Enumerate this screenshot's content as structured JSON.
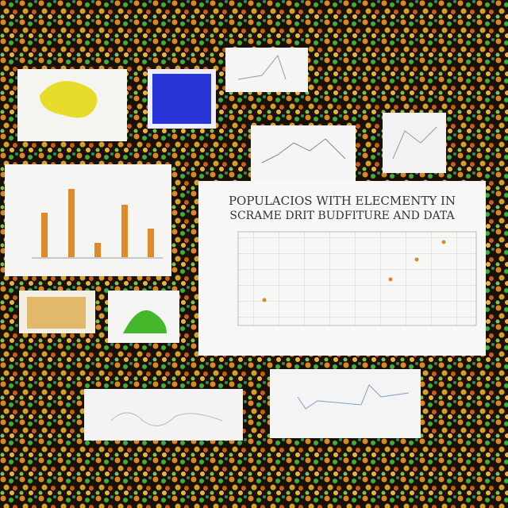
{
  "main_panel": {
    "title_lines": [
      "POPULACIOS WITH ELECMENTY IN",
      "SCRAME DRIT BUDFITURE AND DATA"
    ]
  }
}
